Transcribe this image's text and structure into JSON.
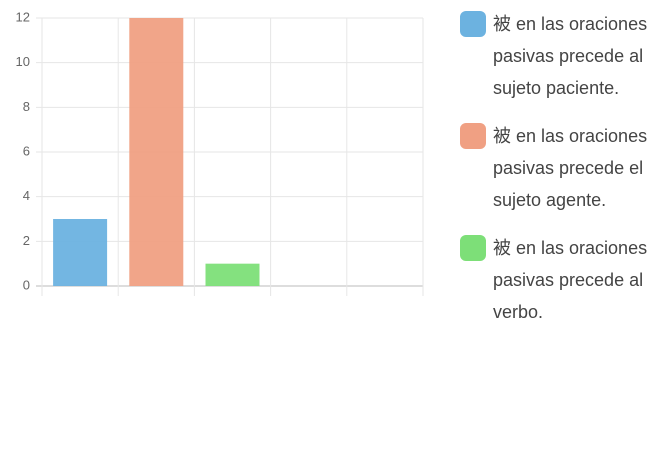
{
  "chart_data": {
    "type": "bar",
    "categories": [
      null,
      null,
      null,
      null,
      null
    ],
    "series": [
      {
        "name": "被 en las oraciones pasivas precede al sujeto paciente.",
        "color": "#6cb2e0",
        "values": [
          3,
          null,
          null,
          null,
          null
        ]
      },
      {
        "name": "被 en las oraciones pasivas precede el sujeto agente.",
        "color": "#f0a083",
        "values": [
          null,
          12,
          null,
          null,
          null
        ]
      },
      {
        "name": "被 en las oraciones pasivas precede al verbo.",
        "color": "#7ddf78",
        "values": [
          null,
          null,
          1,
          null,
          null
        ]
      }
    ],
    "ylim": [
      0,
      12
    ],
    "yticks": [
      0,
      2,
      4,
      6,
      8,
      10,
      12
    ],
    "grid": true,
    "legend": "right"
  }
}
